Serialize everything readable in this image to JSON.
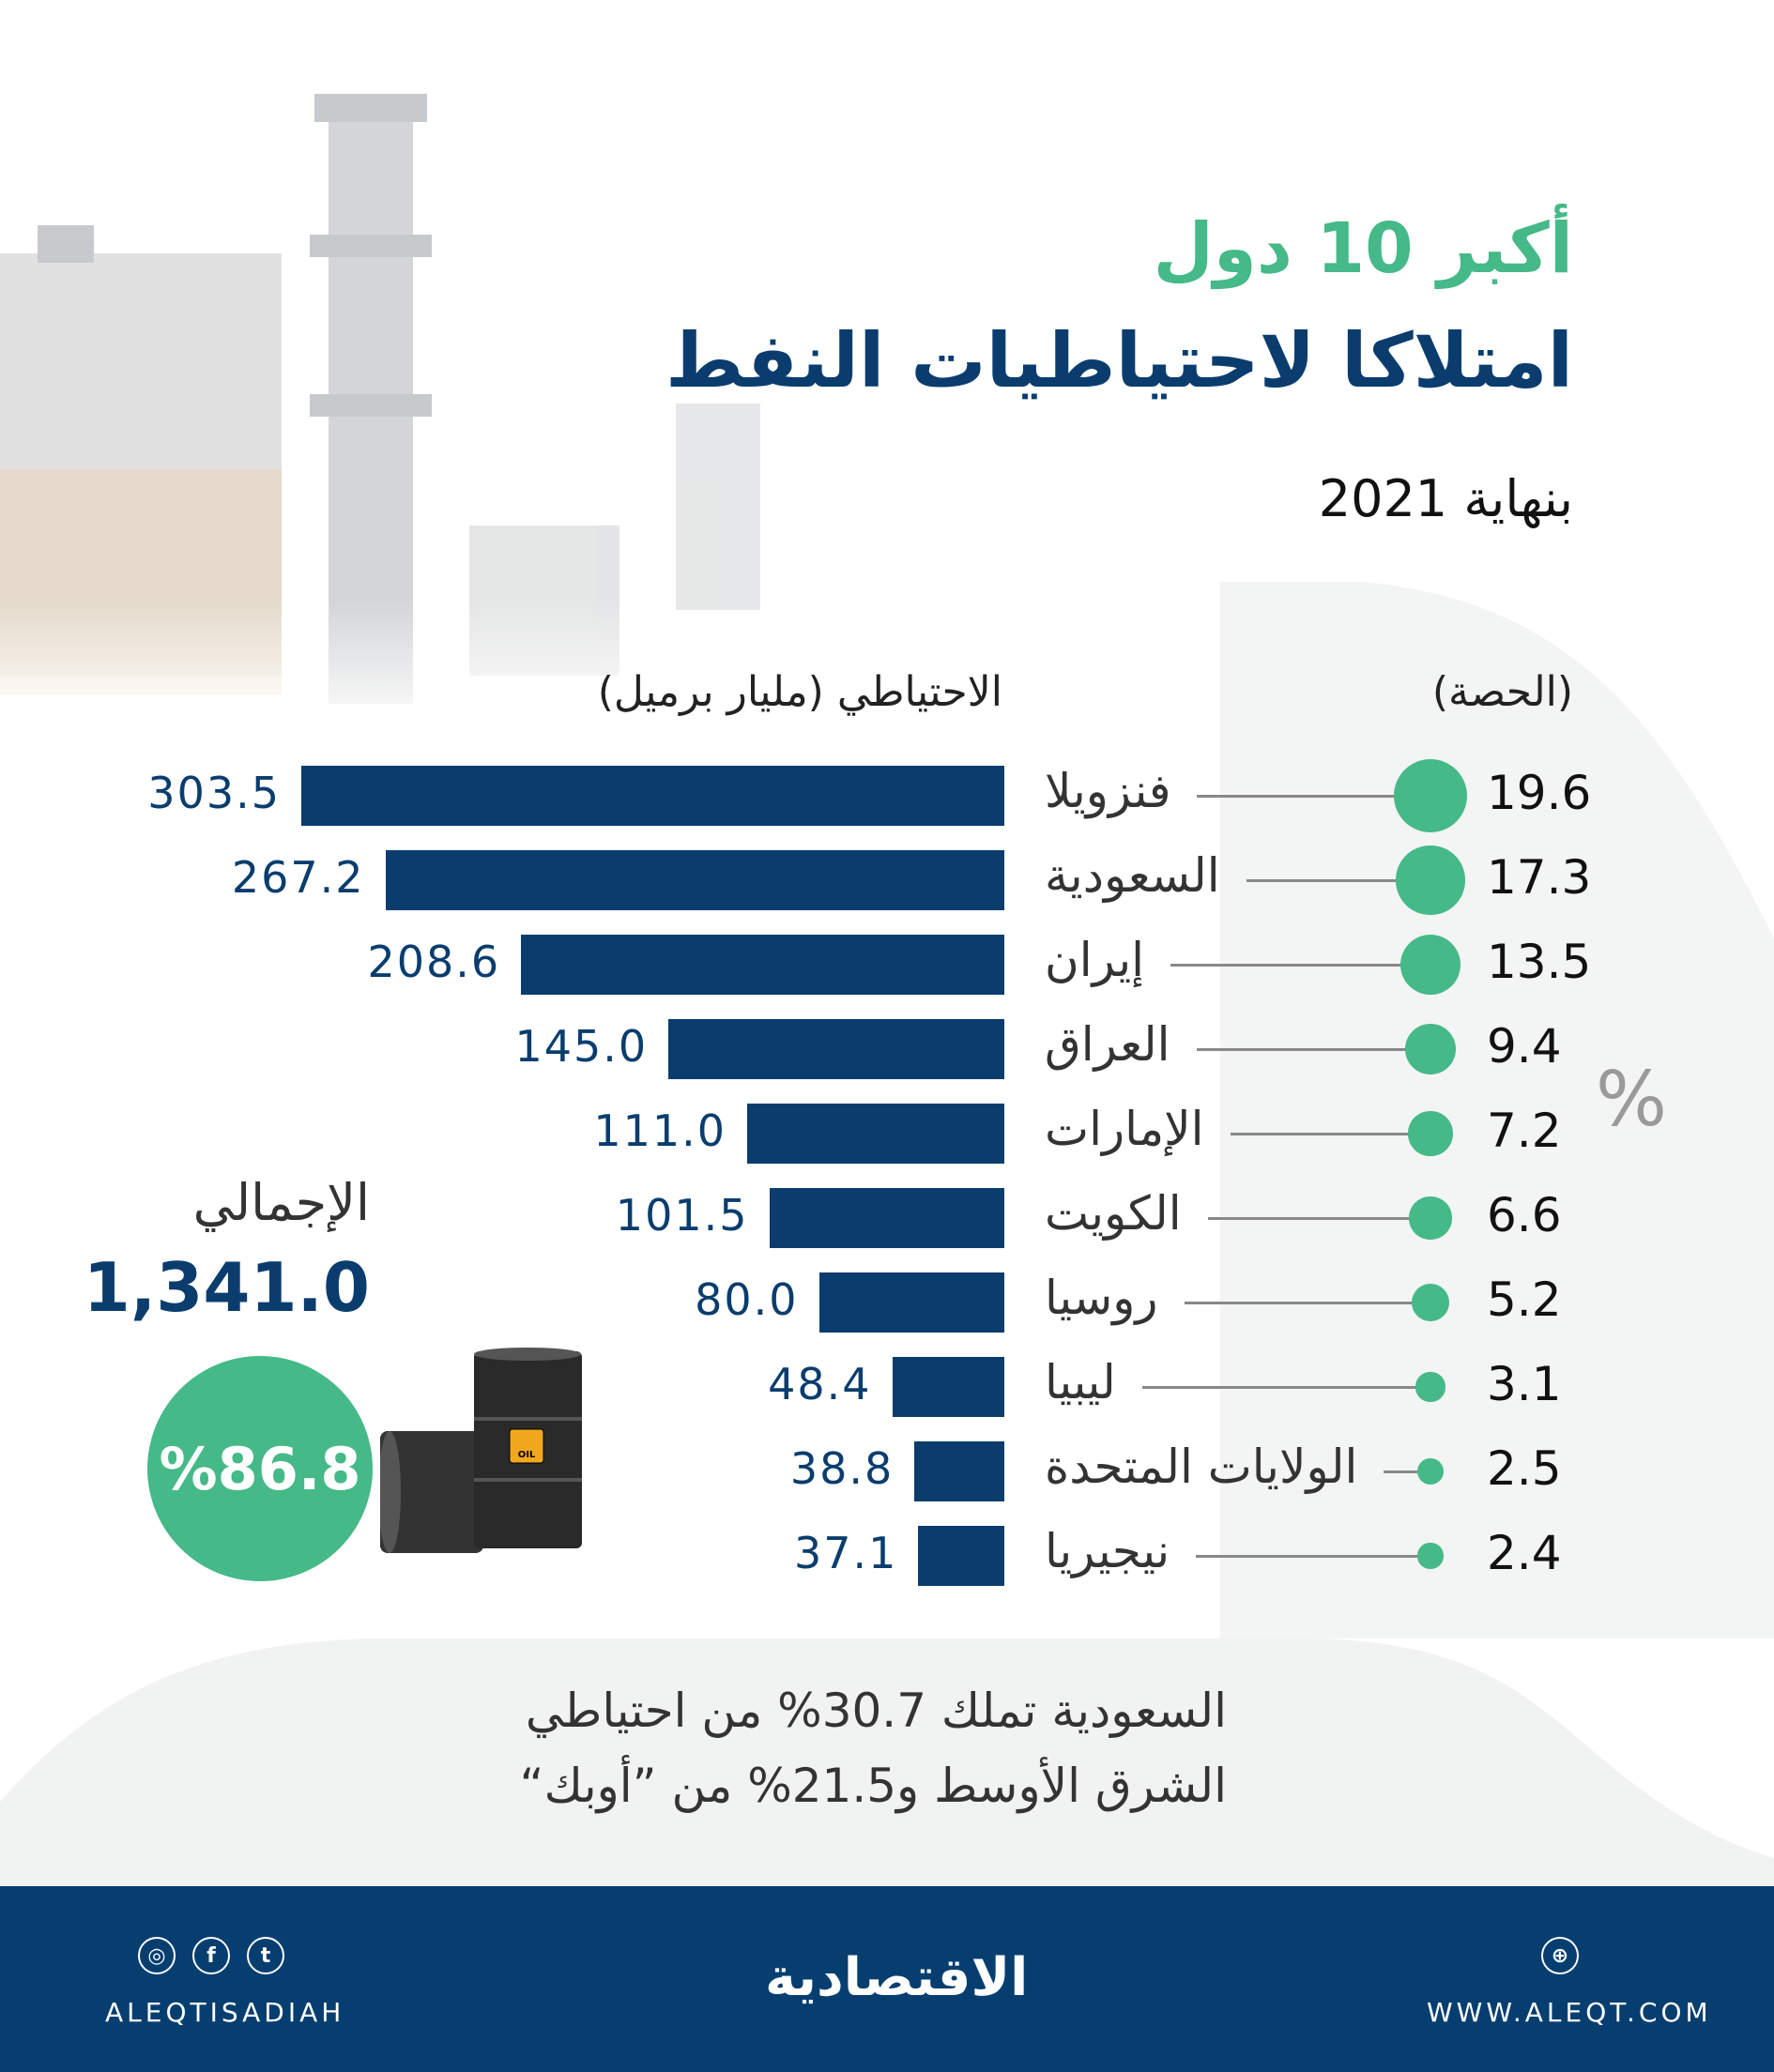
{
  "header": {
    "title_line1": "أكبر 10 دول",
    "title_line2": "امتلاكا لاحتياطيات النفط",
    "subtitle": "بنهاية 2021"
  },
  "chart_data": {
    "type": "bar",
    "orientation": "horizontal",
    "categories": [
      "فنزويلا",
      "السعودية",
      "إيران",
      "العراق",
      "الإمارات",
      "الكويت",
      "روسيا",
      "ليبيا",
      "الولايات المتحدة",
      "نيجيريا"
    ],
    "series": [
      {
        "name": "الاحتياطي (مليار برميل)",
        "values": [
          303.5,
          267.2,
          208.6,
          145.0,
          111.0,
          101.5,
          80.0,
          48.4,
          38.8,
          37.1
        ],
        "labels": [
          "303.5",
          "267.2",
          "208.6",
          "145.0",
          "111.0",
          "101.5",
          "80.0",
          "48.4",
          "38.8",
          "37.1"
        ],
        "color": "#0a3d6e"
      },
      {
        "name": "(الحصة)",
        "values": [
          19.6,
          17.3,
          13.5,
          9.4,
          7.2,
          6.6,
          5.2,
          3.1,
          2.5,
          2.4
        ],
        "labels": [
          "19.6",
          "17.3",
          "13.5",
          "9.4",
          "7.2",
          "6.6",
          "5.2",
          "3.1",
          "2.5",
          "2.4"
        ],
        "color": "#45b987",
        "unit": "%",
        "mark": "circle"
      }
    ],
    "share_unit_label": "%"
  },
  "total": {
    "label": "الإجمالي",
    "value": "1,341.0",
    "share": "%86.8"
  },
  "barrel_label": "OIL",
  "note": {
    "line1": "السعودية تملك 30.7% من احتياطي",
    "line2": "الشرق الأوسط و21.5% من ”أوبك“"
  },
  "footer": {
    "social_handle": "ALEQTISADIAH",
    "logo": "الاقتصادية",
    "website": "WWW.ALEQT.COM",
    "icons": [
      "instagram-icon",
      "facebook-icon",
      "twitter-icon",
      "globe-icon"
    ]
  },
  "colors": {
    "navy": "#0a3d6e",
    "green": "#45b987",
    "footer": "#063e70"
  }
}
